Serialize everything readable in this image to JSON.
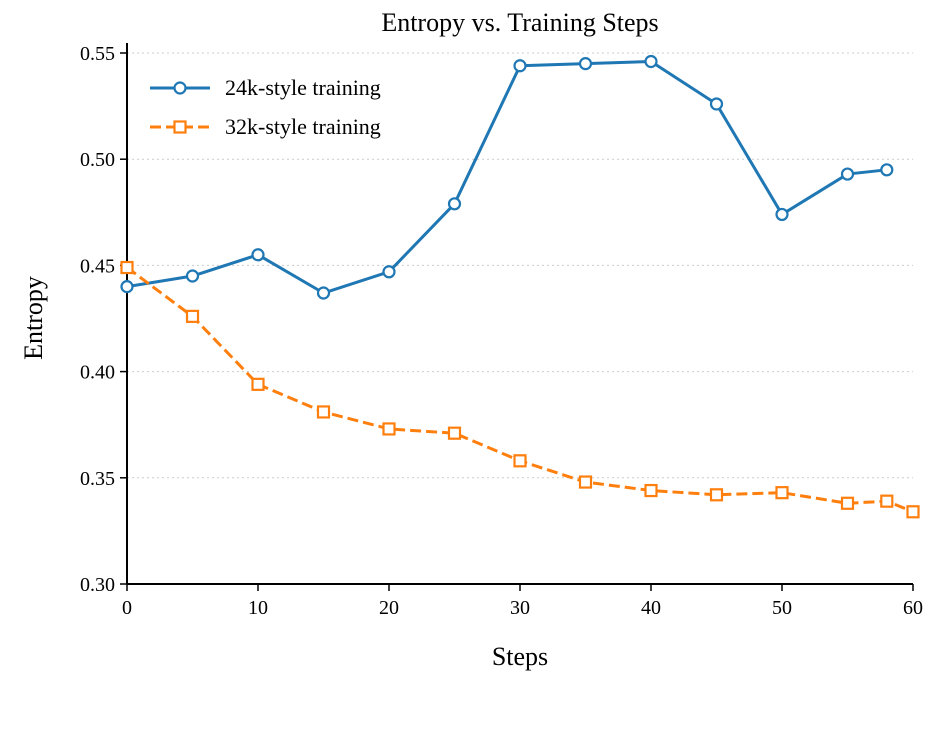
{
  "chart_data": {
    "type": "line",
    "title": "Entropy vs. Training Steps",
    "xlabel": "Steps",
    "ylabel": "Entropy",
    "xlim": [
      0,
      60
    ],
    "ylim": [
      0.3,
      0.55
    ],
    "xticks": [
      "0",
      "10",
      "20",
      "30",
      "40",
      "50",
      "60"
    ],
    "yticks": [
      "0.30",
      "0.35",
      "0.40",
      "0.45",
      "0.50",
      "0.55"
    ],
    "grid": "horizontal dotted",
    "legend_position": "top-left",
    "series": [
      {
        "name": "24k-style training",
        "color": "#1f77b4",
        "marker": "circle",
        "linestyle": "solid",
        "x": [
          0,
          5,
          10,
          15,
          20,
          25,
          30,
          35,
          40,
          45,
          50,
          55,
          58
        ],
        "y": [
          0.44,
          0.445,
          0.455,
          0.437,
          0.447,
          0.479,
          0.544,
          0.545,
          0.546,
          0.526,
          0.474,
          0.493,
          0.495
        ]
      },
      {
        "name": "32k-style training",
        "color": "#ff7f0e",
        "marker": "square",
        "linestyle": "dashed",
        "x": [
          0,
          5,
          10,
          15,
          20,
          25,
          30,
          35,
          40,
          45,
          50,
          55,
          58,
          60
        ],
        "y": [
          0.449,
          0.426,
          0.394,
          0.381,
          0.373,
          0.371,
          0.358,
          0.348,
          0.344,
          0.342,
          0.343,
          0.338,
          0.339,
          0.334
        ]
      }
    ]
  }
}
